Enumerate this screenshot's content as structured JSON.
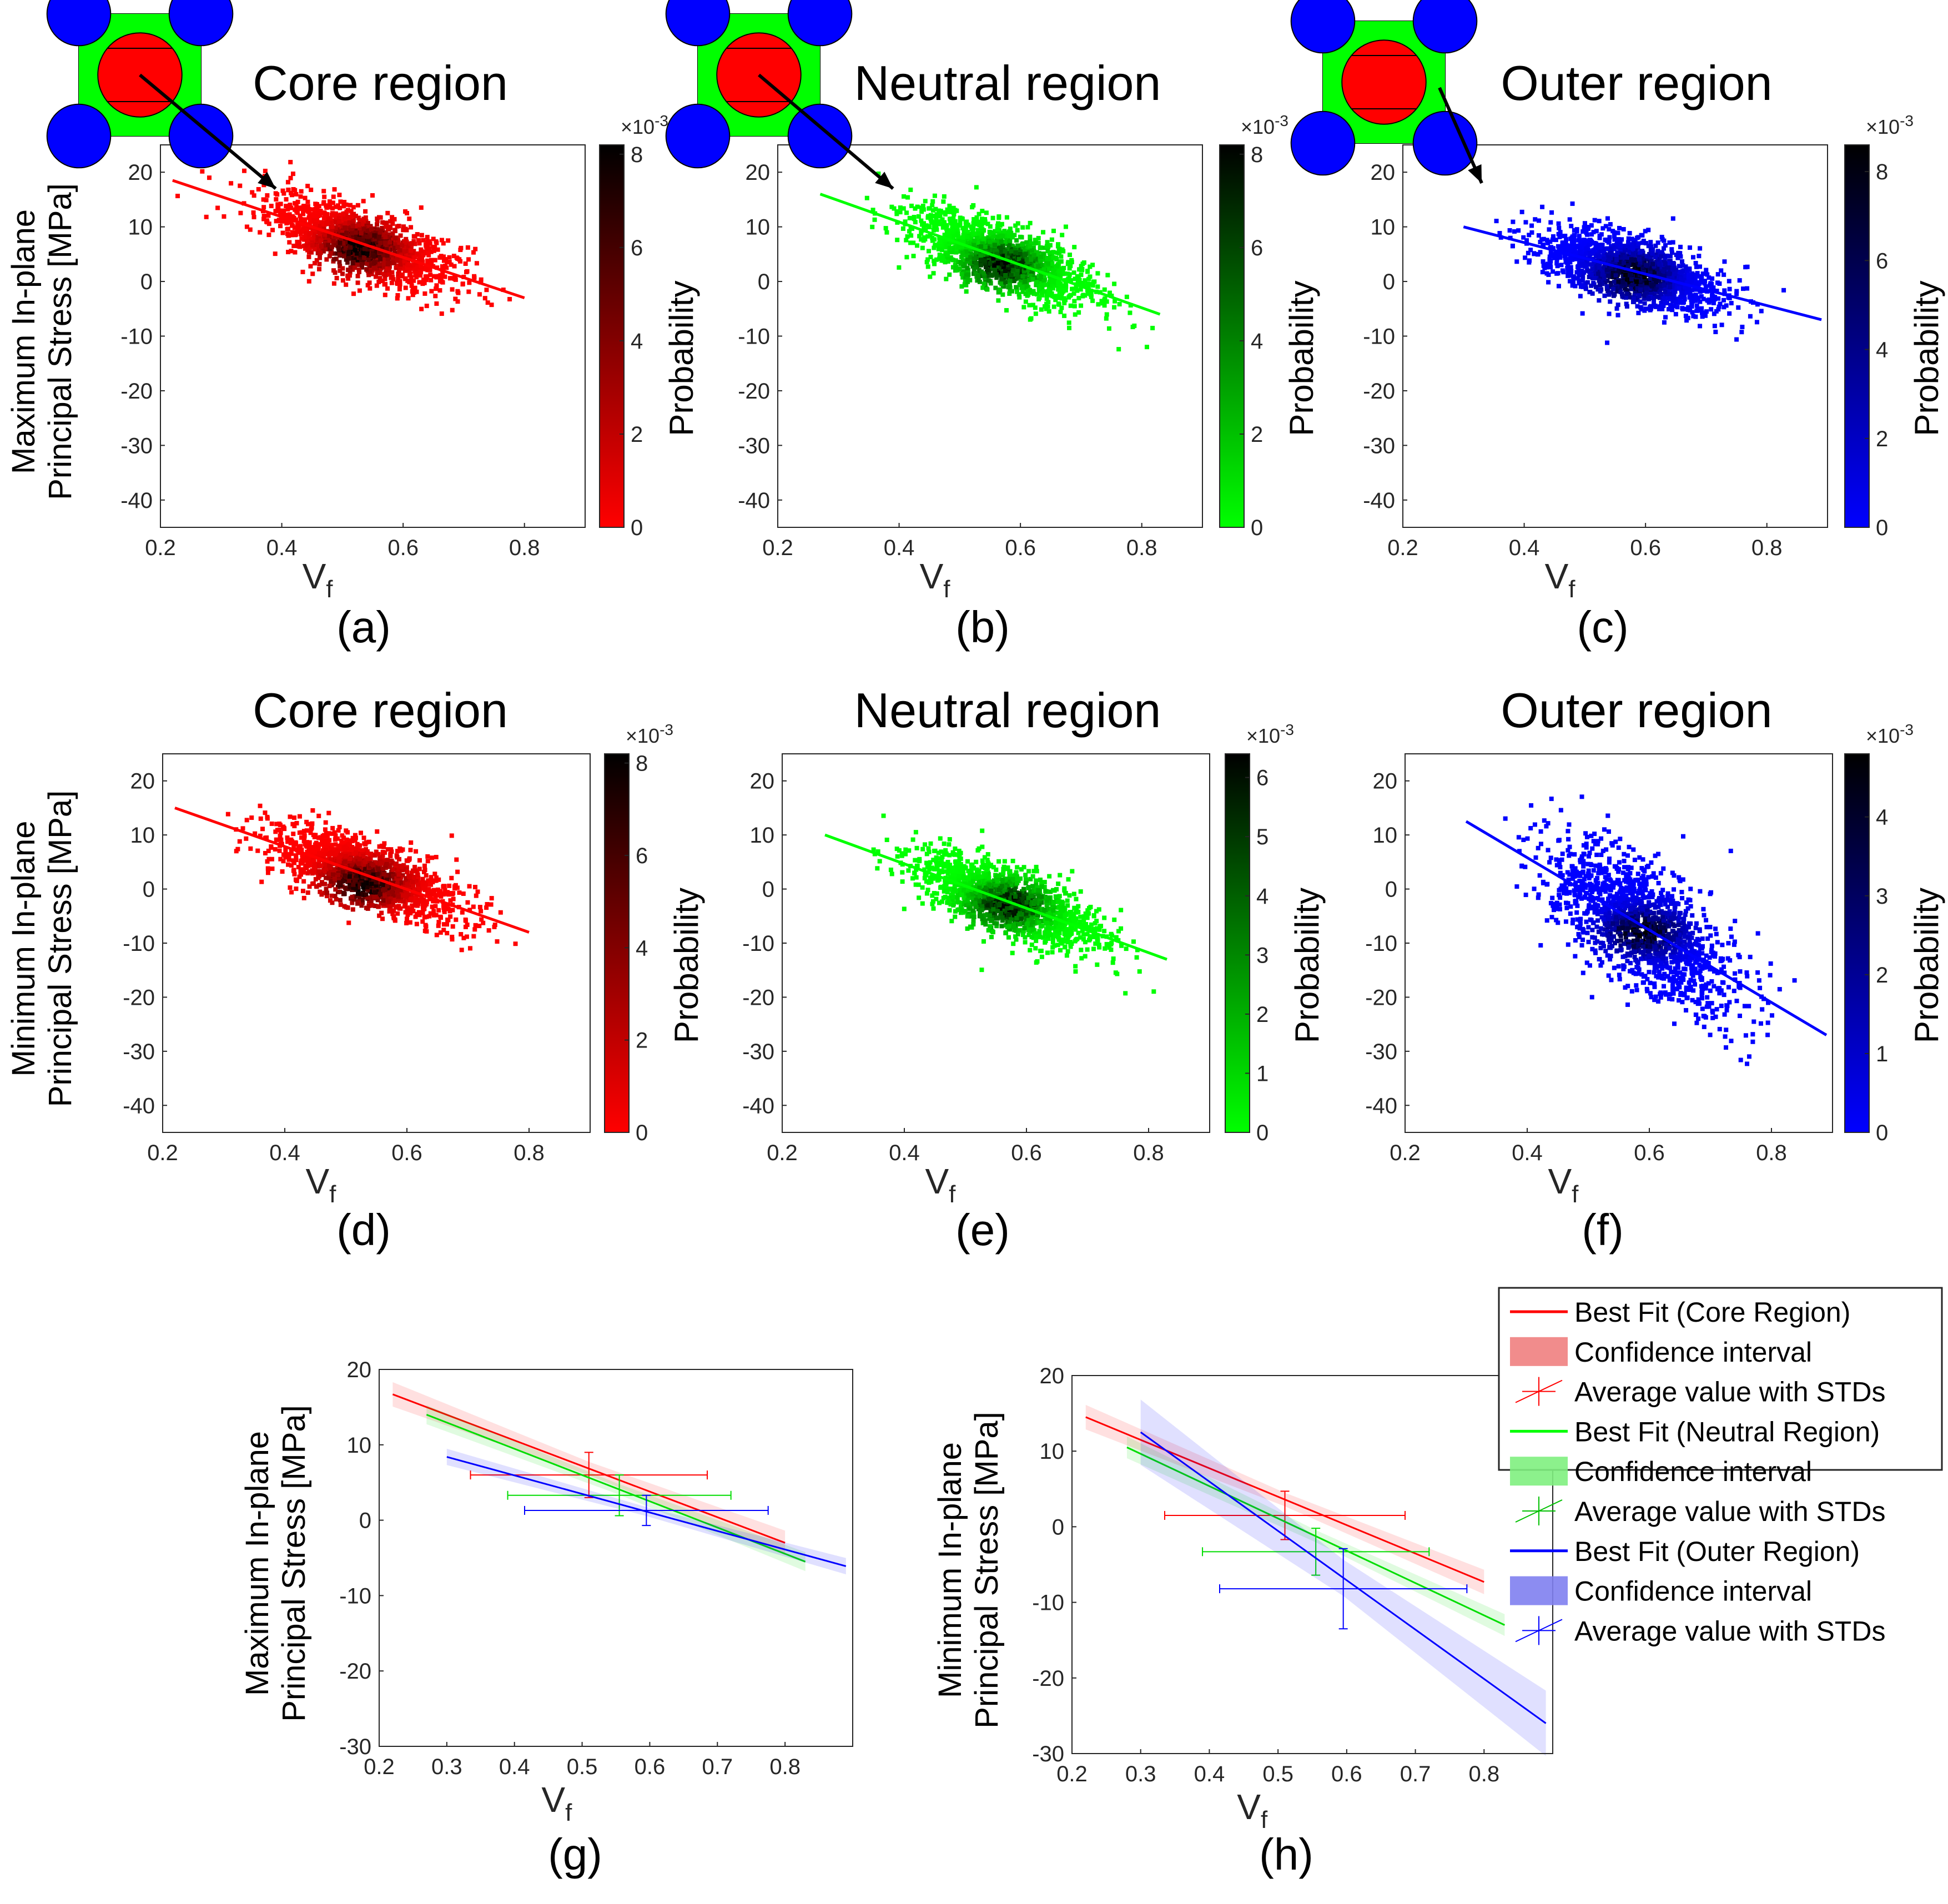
{
  "figure": {
    "panel_letters": [
      "(a)",
      "(b)",
      "(c)",
      "(d)",
      "(e)",
      "(f)",
      "(g)",
      "(h)"
    ],
    "colorbar_label": "Probability",
    "colorbar_exponent": "×10",
    "colorbar_exponent_power": "-3",
    "xlabel_main": "V",
    "xlabel_sub": "f",
    "ylabel_max_line1": "Maximum In-plane",
    "ylabel_min_line1": "Minimum In-plane",
    "ylabel_line2": "Principal Stress [MPa]",
    "colors": {
      "core": "#ff0000",
      "neutral": "#00ff00",
      "outer": "#0000ff"
    }
  },
  "legend": {
    "items": [
      {
        "label": "Best Fit (Core Region)",
        "kind": "line",
        "color": "#ff0000"
      },
      {
        "label": "Confidence interval",
        "kind": "patch",
        "color": "#f08080"
      },
      {
        "label": "Average value with STDs",
        "kind": "errorbar",
        "color": "#ff0000"
      },
      {
        "label": "Best Fit (Neutral Region)",
        "kind": "line",
        "color": "#00ff00"
      },
      {
        "label": "Confidence interval",
        "kind": "patch",
        "color": "#80f080"
      },
      {
        "label": "Average value with STDs",
        "kind": "errorbar",
        "color": "#00c000"
      },
      {
        "label": "Best Fit (Outer Region)",
        "kind": "line",
        "color": "#0000ff"
      },
      {
        "label": "Confidence interval",
        "kind": "patch",
        "color": "#8080f0"
      },
      {
        "label": "Average value with STDs",
        "kind": "errorbar",
        "color": "#0000ff"
      }
    ]
  },
  "chart_data": [
    {
      "id": "a",
      "type": "heatmap",
      "title": "Core region",
      "region": "core",
      "stress": "max",
      "xlim": [
        0.2,
        0.9
      ],
      "ylim": [
        -45,
        25
      ],
      "xticks": [
        0.2,
        0.4,
        0.6,
        0.8
      ],
      "yticks": [
        20,
        10,
        0,
        -10,
        -20,
        -30,
        -40
      ],
      "fit": {
        "x": [
          0.22,
          0.8
        ],
        "y": [
          18.5,
          -3
        ]
      },
      "center": [
        0.53,
        6
      ],
      "cbar_ticks": [
        0,
        2,
        4,
        6,
        8
      ],
      "cbar_max": 8.2
    },
    {
      "id": "b",
      "type": "heatmap",
      "title": "Neutral region",
      "region": "neutral",
      "stress": "max",
      "xlim": [
        0.2,
        0.9
      ],
      "ylim": [
        -45,
        25
      ],
      "xticks": [
        0.2,
        0.4,
        0.6,
        0.8
      ],
      "yticks": [
        20,
        10,
        0,
        -10,
        -20,
        -30,
        -40
      ],
      "fit": {
        "x": [
          0.27,
          0.83
        ],
        "y": [
          16,
          -6
        ]
      },
      "center": [
        0.57,
        3
      ],
      "cbar_ticks": [
        0,
        2,
        4,
        6,
        8
      ],
      "cbar_max": 8.2
    },
    {
      "id": "c",
      "type": "heatmap",
      "title": "Outer region",
      "region": "outer",
      "stress": "max",
      "xlim": [
        0.2,
        0.9
      ],
      "ylim": [
        -45,
        25
      ],
      "xticks": [
        0.2,
        0.4,
        0.6,
        0.8
      ],
      "yticks": [
        20,
        10,
        0,
        -10,
        -20,
        -30,
        -40
      ],
      "fit": {
        "x": [
          0.3,
          0.89
        ],
        "y": [
          10,
          -7
        ]
      },
      "center": [
        0.58,
        1
      ],
      "cbar_ticks": [
        0,
        2,
        4,
        6,
        8
      ],
      "cbar_max": 8.6
    },
    {
      "id": "d",
      "type": "heatmap",
      "title": "Core region",
      "region": "core",
      "stress": "min",
      "xlim": [
        0.2,
        0.9
      ],
      "ylim": [
        -45,
        25
      ],
      "xticks": [
        0.2,
        0.4,
        0.6,
        0.8
      ],
      "yticks": [
        20,
        10,
        0,
        -10,
        -20,
        -30,
        -40
      ],
      "fit": {
        "x": [
          0.22,
          0.8
        ],
        "y": [
          15,
          -8
        ]
      },
      "center": [
        0.53,
        1
      ],
      "cbar_ticks": [
        0,
        2,
        4,
        6,
        8
      ],
      "cbar_max": 8.2
    },
    {
      "id": "e",
      "type": "heatmap",
      "title": "Neutral region",
      "region": "neutral",
      "stress": "min",
      "xlim": [
        0.2,
        0.9
      ],
      "ylim": [
        -45,
        25
      ],
      "xticks": [
        0.2,
        0.4,
        0.6,
        0.8
      ],
      "yticks": [
        20,
        10,
        0,
        -10,
        -20,
        -30,
        -40
      ],
      "fit": {
        "x": [
          0.27,
          0.83
        ],
        "y": [
          10,
          -13
        ]
      },
      "center": [
        0.57,
        -3
      ],
      "cbar_ticks": [
        0,
        1,
        2,
        3,
        4,
        5,
        6
      ],
      "cbar_max": 6.4
    },
    {
      "id": "f",
      "type": "heatmap",
      "title": "Outer region",
      "region": "outer",
      "stress": "min",
      "xlim": [
        0.2,
        0.9
      ],
      "ylim": [
        -45,
        25
      ],
      "xticks": [
        0.2,
        0.4,
        0.6,
        0.8
      ],
      "yticks": [
        20,
        10,
        0,
        -10,
        -20,
        -30,
        -40
      ],
      "fit": {
        "x": [
          0.3,
          0.89
        ],
        "y": [
          12.5,
          -27
        ]
      },
      "center": [
        0.59,
        -8
      ],
      "cbar_ticks": [
        0,
        1,
        2,
        3,
        4
      ],
      "cbar_max": 4.8
    },
    {
      "id": "g",
      "type": "line",
      "stress": "max",
      "xlim": [
        0.2,
        0.9
      ],
      "ylim": [
        -30,
        20
      ],
      "xticks": [
        0.2,
        0.3,
        0.4,
        0.5,
        0.6,
        0.7,
        0.8
      ],
      "yticks": [
        20,
        10,
        0,
        -10,
        -20,
        -30
      ],
      "series": [
        {
          "name": "Core",
          "color": "#ff0000",
          "fit": {
            "x": [
              0.22,
              0.8
            ],
            "y": [
              16.7,
              -3
            ]
          },
          "ci": 0.9,
          "mean": {
            "x": 0.51,
            "y": 6,
            "xerr": 0.175,
            "yerr": 3
          }
        },
        {
          "name": "Neutral",
          "color": "#00dd00",
          "fit": {
            "x": [
              0.27,
              0.83
            ],
            "y": [
              14,
              -5.5
            ]
          },
          "ci": 0.7,
          "mean": {
            "x": 0.555,
            "y": 3.3,
            "xerr": 0.165,
            "yerr": 2.7
          }
        },
        {
          "name": "Outer",
          "color": "#0000ff",
          "fit": {
            "x": [
              0.3,
              0.89
            ],
            "y": [
              8.4,
              -6.1
            ]
          },
          "ci": 0.6,
          "mean": {
            "x": 0.595,
            "y": 1.3,
            "xerr": 0.18,
            "yerr": 2
          }
        }
      ]
    },
    {
      "id": "h",
      "type": "line",
      "stress": "min",
      "xlim": [
        0.2,
        0.9
      ],
      "ylim": [
        -30,
        20
      ],
      "xticks": [
        0.2,
        0.3,
        0.4,
        0.5,
        0.6,
        0.7,
        0.8
      ],
      "yticks": [
        20,
        10,
        0,
        -10,
        -20,
        -30
      ],
      "series": [
        {
          "name": "Core",
          "color": "#ff0000",
          "fit": {
            "x": [
              0.22,
              0.8
            ],
            "y": [
              14.5,
              -7.3
            ]
          },
          "ci": 0.9,
          "mean": {
            "x": 0.51,
            "y": 1.5,
            "xerr": 0.175,
            "yerr": 3.2
          }
        },
        {
          "name": "Neutral",
          "color": "#00dd00",
          "fit": {
            "x": [
              0.28,
              0.83
            ],
            "y": [
              10.5,
              -13
            ]
          },
          "ci": 0.8,
          "mean": {
            "x": 0.555,
            "y": -3.3,
            "xerr": 0.165,
            "yerr": 3.1
          }
        },
        {
          "name": "Outer",
          "color": "#0000ff",
          "fit": {
            "x": [
              0.3,
              0.89
            ],
            "y": [
              12.5,
              -26
            ]
          },
          "ci": 2.4,
          "mean": {
            "x": 0.595,
            "y": -8.2,
            "xerr": 0.18,
            "yerr": 5.3
          }
        }
      ]
    }
  ]
}
